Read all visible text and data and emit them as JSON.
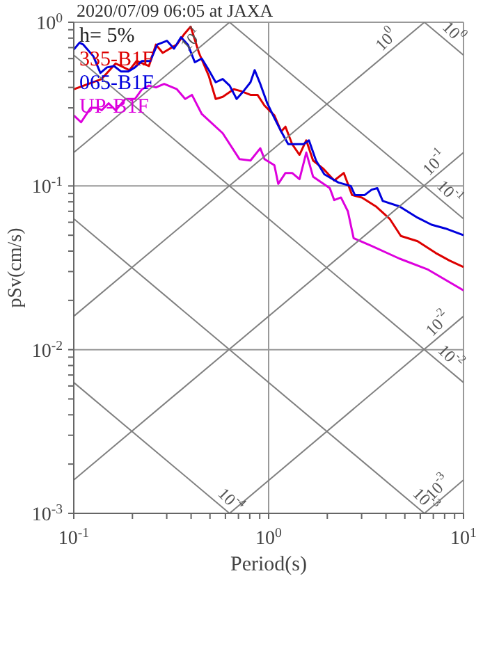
{
  "chart_data": {
    "type": "line",
    "title": "2020/07/09 06:05 at JAXA",
    "xlabel": "Period(s)",
    "ylabel": "pSv(cm/s)",
    "log": "xy",
    "grid": true,
    "legend": "top left",
    "xlim": [
      0.1,
      10
    ],
    "ylim": [
      0.001,
      1
    ],
    "xticks": [
      {
        "value": 0.1,
        "label": "10$^{-1}$"
      },
      {
        "value": 0.2,
        "label": null
      },
      {
        "value": 0.3,
        "label": null
      },
      {
        "value": 0.4,
        "label": null
      },
      {
        "value": 0.5,
        "label": null
      },
      {
        "value": 0.6,
        "label": null
      },
      {
        "value": 0.7,
        "label": null
      },
      {
        "value": 0.8,
        "label": null
      },
      {
        "value": 0.9,
        "label": null
      },
      {
        "value": 1,
        "label": "10$^{0}$"
      },
      {
        "value": 2,
        "label": null
      },
      {
        "value": 3,
        "label": null
      },
      {
        "value": 4,
        "label": null
      },
      {
        "value": 5,
        "label": null
      },
      {
        "value": 6,
        "label": null
      },
      {
        "value": 7,
        "label": null
      },
      {
        "value": 8,
        "label": null
      },
      {
        "value": 9,
        "label": null
      },
      {
        "value": 10,
        "label": "10$^{1}$"
      }
    ],
    "yticks": [
      {
        "value": 0.001,
        "label": "10$^{-3}$"
      },
      {
        "value": 0.002,
        "label": null
      },
      {
        "value": 0.003,
        "label": null
      },
      {
        "value": 0.004,
        "label": null
      },
      {
        "value": 0.005,
        "label": null
      },
      {
        "value": 0.006,
        "label": null
      },
      {
        "value": 0.007,
        "label": null
      },
      {
        "value": 0.008,
        "label": null
      },
      {
        "value": 0.009,
        "label": null
      },
      {
        "value": 0.01,
        "label": "10$^{-2}$"
      },
      {
        "value": 0.02,
        "label": null
      },
      {
        "value": 0.03,
        "label": null
      },
      {
        "value": 0.04,
        "label": null
      },
      {
        "value": 0.05,
        "label": null
      },
      {
        "value": 0.06,
        "label": null
      },
      {
        "value": 0.07,
        "label": null
      },
      {
        "value": 0.08,
        "label": null
      },
      {
        "value": 0.09,
        "label": null
      },
      {
        "value": 0.1,
        "label": "10$^{-1}$"
      },
      {
        "value": 0.2,
        "label": null
      },
      {
        "value": 0.3,
        "label": null
      },
      {
        "value": 0.4,
        "label": null
      },
      {
        "value": 0.5,
        "label": null
      },
      {
        "value": 0.6,
        "label": null
      },
      {
        "value": 0.7,
        "label": null
      },
      {
        "value": 0.8,
        "label": null
      },
      {
        "value": 0.9,
        "label": null
      },
      {
        "value": 1,
        "label": "10$^{0}$"
      }
    ],
    "series": [
      {
        "name": "335-B1F",
        "color": "#dd0000",
        "x": [
          0.1,
          0.139,
          0.164,
          0.193,
          0.21,
          0.243,
          0.264,
          0.286,
          0.311,
          0.338,
          0.367,
          0.398,
          0.439,
          0.493,
          0.535,
          0.581,
          0.663,
          0.719,
          0.807,
          0.877,
          0.952,
          1.07,
          1.16,
          1.22,
          1.32,
          1.44,
          1.56,
          1.69,
          1.9,
          2.17,
          2.43,
          2.55,
          2.68,
          3.01,
          3.55,
          4.18,
          4.77,
          5.81,
          7.19,
          8.48,
          10
        ],
        "values": [
          0.39,
          0.45,
          0.56,
          0.51,
          0.58,
          0.54,
          0.73,
          0.65,
          0.69,
          0.73,
          0.84,
          0.94,
          0.65,
          0.47,
          0.34,
          0.35,
          0.39,
          0.38,
          0.36,
          0.36,
          0.31,
          0.27,
          0.215,
          0.23,
          0.18,
          0.155,
          0.19,
          0.143,
          0.128,
          0.108,
          0.12,
          0.103,
          0.088,
          0.085,
          0.075,
          0.063,
          0.0495,
          0.046,
          0.039,
          0.035,
          0.032
        ]
      },
      {
        "name": "065-B1F",
        "color": "#0000dd",
        "x": [
          0.1,
          0.107,
          0.112,
          0.126,
          0.137,
          0.148,
          0.161,
          0.175,
          0.19,
          0.206,
          0.224,
          0.247,
          0.268,
          0.301,
          0.327,
          0.355,
          0.385,
          0.418,
          0.454,
          0.493,
          0.535,
          0.581,
          0.631,
          0.685,
          0.744,
          0.807,
          0.848,
          0.906,
          0.984,
          1.07,
          1.16,
          1.26,
          1.39,
          1.51,
          1.61,
          1.75,
          1.93,
          2.28,
          2.64,
          2.77,
          3.11,
          3.38,
          3.61,
          3.85,
          4.69,
          5.81,
          6.85,
          8.07,
          10
        ],
        "values": [
          0.68,
          0.75,
          0.73,
          0.62,
          0.49,
          0.53,
          0.54,
          0.5,
          0.5,
          0.53,
          0.58,
          0.58,
          0.73,
          0.77,
          0.69,
          0.81,
          0.73,
          0.57,
          0.6,
          0.51,
          0.43,
          0.45,
          0.41,
          0.34,
          0.38,
          0.43,
          0.51,
          0.42,
          0.32,
          0.26,
          0.215,
          0.18,
          0.18,
          0.18,
          0.19,
          0.143,
          0.118,
          0.105,
          0.1,
          0.088,
          0.088,
          0.095,
          0.097,
          0.081,
          0.075,
          0.064,
          0.058,
          0.055,
          0.05
        ]
      },
      {
        "name": "UP-B1F",
        "color": "#dd00dd",
        "x": [
          0.1,
          0.109,
          0.122,
          0.132,
          0.139,
          0.151,
          0.164,
          0.184,
          0.206,
          0.224,
          0.243,
          0.264,
          0.291,
          0.338,
          0.373,
          0.404,
          0.454,
          0.581,
          0.708,
          0.807,
          0.906,
          0.952,
          1.07,
          1.12,
          1.22,
          1.32,
          1.44,
          1.56,
          1.69,
          2.06,
          2.17,
          2.35,
          2.55,
          2.73,
          3.38,
          4.69,
          6.52,
          10
        ],
        "values": [
          0.27,
          0.245,
          0.3,
          0.3,
          0.29,
          0.32,
          0.29,
          0.34,
          0.34,
          0.39,
          0.41,
          0.4,
          0.42,
          0.39,
          0.34,
          0.36,
          0.275,
          0.21,
          0.146,
          0.143,
          0.17,
          0.146,
          0.134,
          0.103,
          0.12,
          0.12,
          0.11,
          0.16,
          0.114,
          0.097,
          0.082,
          0.085,
          0.07,
          0.048,
          0.043,
          0.036,
          0.031,
          0.023
        ]
      },
      {
        "color": "#808080",
        "x": [
          6.3,
          10
        ],
        "values": [
          0.001,
          0.0016
        ]
      },
      {
        "color": "#808080",
        "x": [
          0.63,
          10
        ],
        "values": [
          0.001,
          0.016
        ]
      },
      {
        "color": "#808080",
        "x": [
          0.1,
          10
        ],
        "values": [
          0.0016,
          0.16
        ]
      },
      {
        "color": "#808080",
        "x": [
          0.1,
          6.3
        ],
        "values": [
          0.016,
          1
        ]
      },
      {
        "color": "#808080",
        "x": [
          0.1,
          0.63
        ],
        "values": [
          0.16,
          1
        ]
      },
      {
        "color": "#808080",
        "x": [
          0.1,
          0.63
        ],
        "values": [
          0.0063,
          0.001
        ]
      },
      {
        "color": "#808080",
        "x": [
          0.1,
          6.3
        ],
        "values": [
          0.063,
          0.001
        ]
      },
      {
        "color": "#808080",
        "x": [
          0.1,
          10
        ],
        "values": [
          0.63,
          0.0063
        ]
      },
      {
        "color": "#808080",
        "x": [
          0.63,
          10
        ],
        "values": [
          1,
          0.063
        ]
      },
      {
        "color": "#808080",
        "x": [
          6.3,
          10
        ],
        "values": [
          1,
          0.63
        ]
      }
    ],
    "annotations": [
      "h= 5%",
      {
        "text": "10$^{1}$",
        "x": 0.44,
        "y": 0.7
      },
      {
        "text": "10$^{0}$",
        "x": 4.4,
        "y": 0.7
      },
      {
        "text": "10$^{0}$",
        "x": 8.1,
        "y": 0.78
      },
      {
        "text": "10$^{-1}$",
        "x": 7.8,
        "y": 0.124
      },
      {
        "text": "10$^{-1}$",
        "x": 7.7,
        "y": 0.082
      },
      {
        "text": "10$^{-2}$",
        "x": 8.1,
        "y": 0.0129
      },
      {
        "text": "10$^{-2}$",
        "x": 7.8,
        "y": 0.0081
      },
      {
        "text": "10$^{-3}$",
        "x": 8.1,
        "y": 0.00129
      },
      {
        "text": "10$^{-3}$",
        "x": 5.8,
        "y": 0.00108
      },
      {
        "text": "10$^{-4}$",
        "x": 0.58,
        "y": 0.00108
      }
    ]
  }
}
